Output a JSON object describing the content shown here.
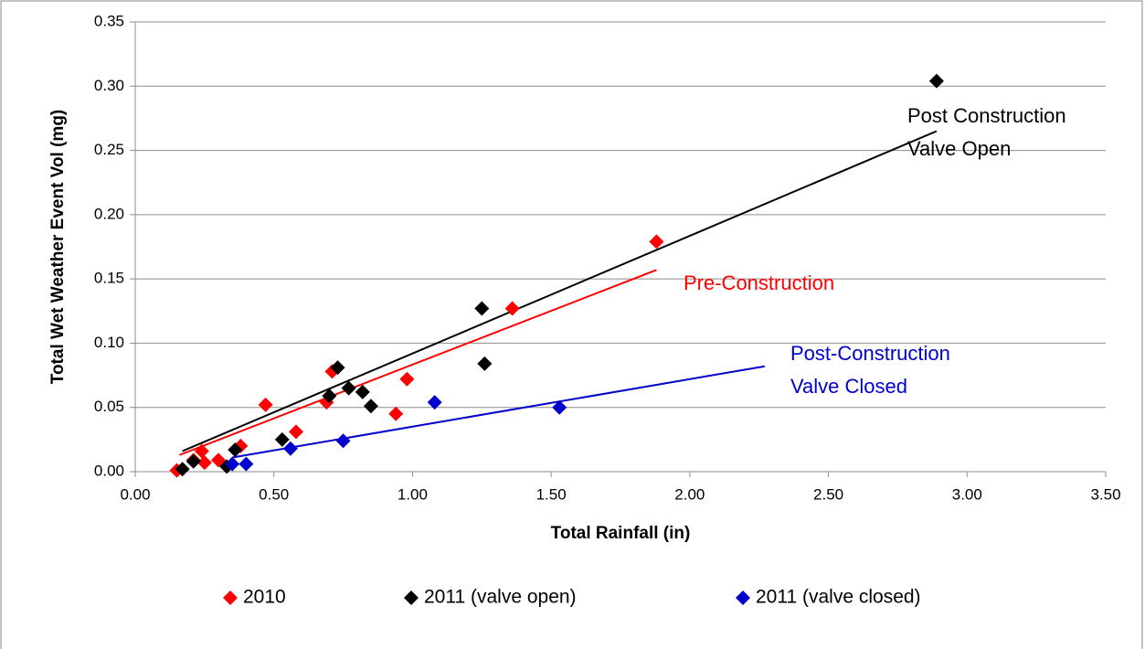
{
  "chart_data": {
    "type": "scatter",
    "xlabel": "Total Rainfall (in)",
    "ylabel": "Total Wet Weather Event Vol (mg)",
    "xlim": [
      0,
      3.5
    ],
    "ylim": [
      0,
      0.35
    ],
    "xticks": [
      {
        "value": 0,
        "label": "0.00"
      },
      {
        "value": 0.5,
        "label": "0.50"
      },
      {
        "value": 1,
        "label": "1.00"
      },
      {
        "value": 1.5,
        "label": "1.50"
      },
      {
        "value": 2,
        "label": "2.00"
      },
      {
        "value": 2.5,
        "label": "2.50"
      },
      {
        "value": 3,
        "label": "3.00"
      },
      {
        "value": 3.5,
        "label": "3.50"
      }
    ],
    "yticks": [
      {
        "value": 0,
        "label": "0.00"
      },
      {
        "value": 0.05,
        "label": "0.05"
      },
      {
        "value": 0.1,
        "label": "0.10"
      },
      {
        "value": 0.15,
        "label": "0.15"
      },
      {
        "value": 0.2,
        "label": "0.20"
      },
      {
        "value": 0.25,
        "label": "0.25"
      },
      {
        "value": 0.3,
        "label": "0.30"
      },
      {
        "value": 0.35,
        "label": "0.35"
      }
    ],
    "grid": true,
    "legend": "bottom",
    "series": [
      {
        "name": "2010",
        "color": "#ff0000",
        "x": [
          0.15,
          0.21,
          0.24,
          0.25,
          0.3,
          0.38,
          0.47,
          0.58,
          0.69,
          0.71,
          0.94,
          0.98,
          1.36,
          1.88
        ],
        "values": [
          0.001,
          0.009,
          0.016,
          0.007,
          0.009,
          0.02,
          0.052,
          0.031,
          0.054,
          0.078,
          0.045,
          0.072,
          0.127,
          0.179
        ],
        "trend": {
          "x": [
            0.16,
            1.88
          ],
          "y": [
            0.013,
            0.157
          ]
        }
      },
      {
        "name": "2011 (valve open)",
        "color": "#000000",
        "x": [
          0.17,
          0.21,
          0.33,
          0.36,
          0.53,
          0.7,
          0.73,
          0.77,
          0.82,
          0.85,
          1.25,
          1.26,
          2.89
        ],
        "values": [
          0.002,
          0.008,
          0.004,
          0.017,
          0.025,
          0.059,
          0.081,
          0.065,
          0.062,
          0.051,
          0.127,
          0.084,
          0.304
        ],
        "trend": {
          "x": [
            0.17,
            2.89
          ],
          "y": [
            0.016,
            0.265
          ]
        }
      },
      {
        "name": "2011 (valve closed)",
        "color": "#0000cc",
        "x": [
          0.35,
          0.4,
          0.56,
          0.75,
          1.08,
          1.53
        ],
        "values": [
          0.006,
          0.006,
          0.018,
          0.024,
          0.054,
          0.05
        ],
        "trend": {
          "x": [
            0.35,
            2.27
          ],
          "y": [
            0.011,
            0.082
          ]
        }
      }
    ],
    "annotations": [
      {
        "lines": [
          "Post Construction",
          "Valve Open"
        ],
        "color": "#000000"
      },
      {
        "lines": [
          "Pre-Construction"
        ],
        "color": "#ff0000"
      },
      {
        "lines": [
          "Post-Construction",
          "Valve Closed"
        ],
        "color": "#0000cc"
      }
    ]
  }
}
